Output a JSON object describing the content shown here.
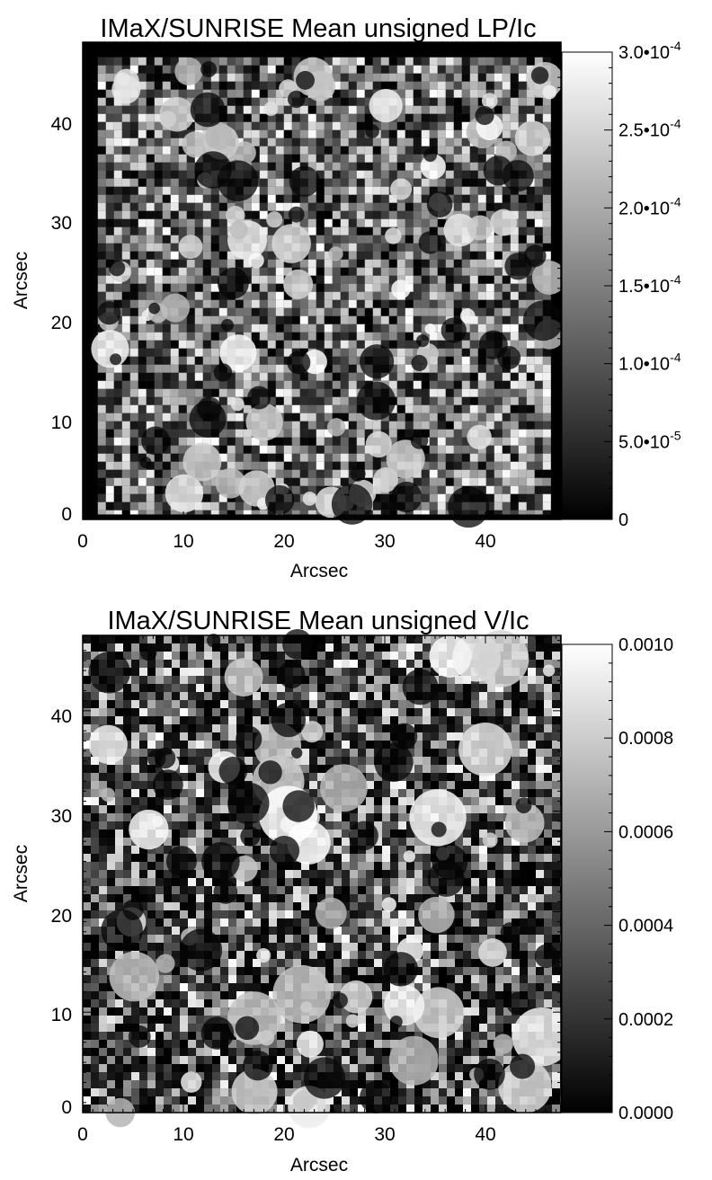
{
  "chart_data": [
    {
      "type": "heatmap",
      "title": "IMaX/SUNRISE Mean unsigned LP/Ic",
      "xlabel": "Arcsec",
      "ylabel": "Arcsec",
      "xlim": [
        0,
        47.5
      ],
      "ylim": [
        0,
        47.5
      ],
      "x_ticks": [
        "0",
        "10",
        "20",
        "30",
        "40"
      ],
      "x_tick_values": [
        0,
        10,
        20,
        30,
        40
      ],
      "y_ticks": [
        "0",
        "10",
        "20",
        "30",
        "40"
      ],
      "y_tick_values": [
        0,
        10,
        20,
        30,
        40
      ],
      "colormap": "grayscale (black to white)",
      "colorbar": {
        "range": [
          0,
          0.0003
        ],
        "tick_values": [
          0,
          5e-05,
          0.0001,
          0.00015,
          0.0002,
          0.00025,
          0.0003
        ],
        "tick_labels": [
          {
            "mant": "0",
            "exp": ""
          },
          {
            "mant": "5.0•10",
            "exp": "-5"
          },
          {
            "mant": "1.0•10",
            "exp": "-4"
          },
          {
            "mant": "1.5•10",
            "exp": "-4"
          },
          {
            "mant": "2.0•10",
            "exp": "-4"
          },
          {
            "mant": "2.5•10",
            "exp": "-4"
          },
          {
            "mant": "3.0•10",
            "exp": "-4"
          }
        ]
      },
      "field_of_view": {
        "x": [
          1.5,
          46.5
        ],
        "y": [
          0.5,
          46
        ]
      }
    },
    {
      "type": "heatmap",
      "title": "IMaX/SUNRISE Mean unsigned V/Ic",
      "xlabel": "Arcsec",
      "ylabel": "Arcsec",
      "xlim": [
        0,
        47.5
      ],
      "ylim": [
        0,
        47.5
      ],
      "x_ticks": [
        "0",
        "10",
        "20",
        "30",
        "40"
      ],
      "x_tick_values": [
        0,
        10,
        20,
        30,
        40
      ],
      "y_ticks": [
        "0",
        "10",
        "20",
        "30",
        "40"
      ],
      "y_tick_values": [
        0,
        10,
        20,
        30,
        40
      ],
      "colormap": "grayscale (black to white)",
      "colorbar": {
        "range": [
          0,
          0.001
        ],
        "tick_values": [
          0,
          0.0002,
          0.0004,
          0.0006,
          0.0008,
          0.001
        ],
        "tick_labels": [
          {
            "mant": "0.0000",
            "exp": ""
          },
          {
            "mant": "0.0002",
            "exp": ""
          },
          {
            "mant": "0.0004",
            "exp": ""
          },
          {
            "mant": "0.0006",
            "exp": ""
          },
          {
            "mant": "0.0008",
            "exp": ""
          },
          {
            "mant": "0.0010",
            "exp": ""
          }
        ]
      },
      "field_of_view": {
        "x": [
          0,
          47.5
        ],
        "y": [
          0,
          47.5
        ]
      }
    }
  ]
}
